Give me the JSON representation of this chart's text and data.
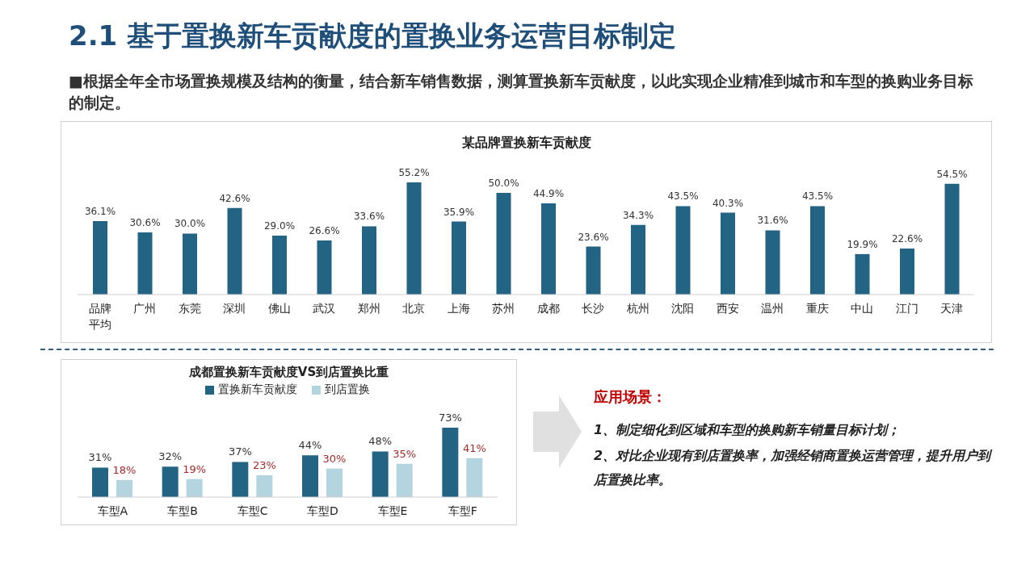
{
  "chart_data": [
    {
      "type": "bar",
      "title": "某品牌置换新车贡献度",
      "annotations": [
        "2.1 基于置换新车贡献度的置换业务运营目标制定",
        "■根据全年全市场置换规模及结构的衡量，结合新车销售数据，测算置换新车贡献度，以此实现企业精准到城市和车型的换购业务目标的制定。"
      ],
      "categories": [
        "品牌平均",
        "广州",
        "东莞",
        "深圳",
        "佛山",
        "武汉",
        "郑州",
        "北京",
        "上海",
        "苏州",
        "成都",
        "长沙",
        "杭州",
        "沈阳",
        "西安",
        "温州",
        "重庆",
        "中山",
        "江门",
        "天津"
      ],
      "values": [
        36.1,
        30.6,
        30.0,
        42.6,
        29.0,
        26.6,
        33.6,
        55.2,
        35.9,
        50.0,
        44.9,
        23.6,
        34.3,
        43.5,
        40.3,
        31.6,
        43.5,
        19.9,
        22.6,
        54.5
      ],
      "value_labels": [
        "36.1%",
        "30.6%",
        "30.0%",
        "42.6%",
        "29.0%",
        "26.6%",
        "33.6%",
        "55.2%",
        "35.9%",
        "50.0%",
        "44.9%",
        "23.6%",
        "34.3%",
        "43.5%",
        "40.3%",
        "31.6%",
        "43.5%",
        "19.9%",
        "22.6%",
        "54.5%"
      ],
      "color": "#236383"
    },
    {
      "type": "bar",
      "title": "成都置换新车贡献度VS到店置换比重",
      "categories": [
        "车型A",
        "车型B",
        "车型C",
        "车型D",
        "车型E",
        "车型F"
      ],
      "legend": "top",
      "series": [
        {
          "name": "置换新车贡献度",
          "color": "#236383",
          "values": [
            31,
            32,
            37,
            44,
            48,
            73
          ],
          "value_labels": [
            "31%",
            "32%",
            "37%",
            "44%",
            "48%",
            "73%"
          ]
        },
        {
          "name": "到店置换",
          "color": "#b4d4e0",
          "values": [
            18,
            19,
            23,
            30,
            35,
            41
          ],
          "value_labels": [
            "18%",
            "19%",
            "23%",
            "30%",
            "35%",
            "41%"
          ]
        }
      ]
    },
    {
      "type": "other",
      "title": "应用场景：",
      "annotations": [
        "1、制定细化到区域和车型的换购新车销量目标计划；",
        "2、对比企业现有到店置换率，加强经销商置换运营管理，提升用户到店置换比率。"
      ]
    }
  ]
}
